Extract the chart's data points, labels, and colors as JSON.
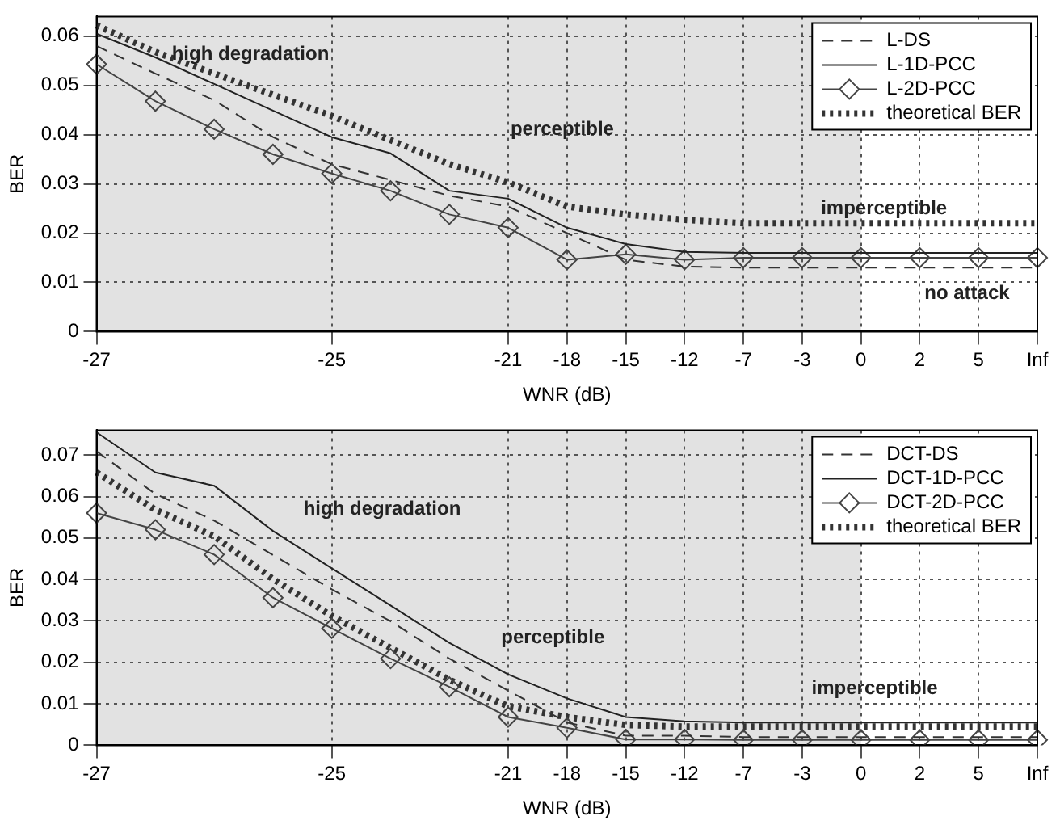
{
  "chart_data": [
    {
      "type": "line",
      "xlabel": "WNR (dB)",
      "ylabel": "BER",
      "categories": [
        "-27",
        null,
        null,
        null,
        "-25",
        null,
        null,
        "-21",
        "-18",
        "-15",
        "-12",
        "-7",
        "-3",
        "0",
        "2",
        "5",
        "Inf"
      ],
      "ylim": [
        0,
        0.064
      ],
      "yticks": [
        0,
        0.01,
        0.02,
        0.03,
        0.04,
        0.05,
        0.06
      ],
      "grid": true,
      "legend": "top right",
      "bands": [
        {
          "axis": "x",
          "from": "-27",
          "to": "0",
          "color": "#e2e2e2"
        }
      ],
      "annotations": [
        "high degradation",
        "perceptible",
        "imperceptible",
        "no attack"
      ],
      "series": [
        {
          "name": "L-DS",
          "color": "#333333",
          "line_style": "dashed",
          "marker": "none",
          "values": [
            0.058,
            0.0524,
            0.047,
            0.0395,
            0.034,
            0.0308,
            0.0276,
            0.0254,
            0.02,
            0.0146,
            0.0132,
            0.013,
            0.013,
            0.013,
            0.013,
            0.013,
            0.013
          ]
        },
        {
          "name": "L-1D-PCC",
          "color": "#222222",
          "line_style": "solid",
          "marker": "none",
          "values": [
            0.0605,
            0.0557,
            0.0503,
            0.0449,
            0.0395,
            0.0362,
            0.0286,
            0.027,
            0.0211,
            0.0178,
            0.0162,
            0.016,
            0.016,
            0.016,
            0.016,
            0.016,
            0.016
          ]
        },
        {
          "name": "L-2D-PCC",
          "color": "#444444",
          "line_style": "solid",
          "marker": "diamond",
          "values": [
            0.0543,
            0.0468,
            0.0411,
            0.036,
            0.0321,
            0.0286,
            0.0238,
            0.0211,
            0.0146,
            0.0157,
            0.0146,
            0.015,
            0.015,
            0.015,
            0.015,
            0.015,
            0.015
          ]
        },
        {
          "name": "theoretical BER",
          "color": "#333333",
          "line_style": "dotted",
          "marker": "none",
          "values": [
            0.0622,
            0.0568,
            0.0524,
            0.0481,
            0.0438,
            0.0389,
            0.034,
            0.0303,
            0.0254,
            0.0238,
            0.0227,
            0.022,
            0.022,
            0.022,
            0.022,
            0.022,
            0.022
          ]
        }
      ]
    },
    {
      "type": "line",
      "xlabel": "WNR (dB)",
      "ylabel": "BER",
      "categories": [
        "-27",
        null,
        null,
        null,
        "-25",
        null,
        null,
        "-21",
        "-18",
        "-15",
        "-12",
        "-7",
        "-3",
        "0",
        "2",
        "5",
        "Inf"
      ],
      "ylim": [
        0,
        0.076
      ],
      "yticks": [
        0,
        0.01,
        0.02,
        0.03,
        0.04,
        0.05,
        0.06,
        0.07
      ],
      "grid": true,
      "legend": "top right",
      "bands": [
        {
          "axis": "x",
          "from": "-27",
          "to": "0",
          "color": "#e2e2e2"
        }
      ],
      "annotations": [
        "high degradation",
        "perceptible",
        "imperceptible"
      ],
      "series": [
        {
          "name": "DCT-DS",
          "color": "#333333",
          "line_style": "dashed",
          "marker": "none",
          "values": [
            0.0709,
            0.0606,
            0.0542,
            0.0459,
            0.0376,
            0.0299,
            0.0209,
            0.0132,
            0.0055,
            0.0023,
            0.0023,
            0.002,
            0.002,
            0.002,
            0.002,
            0.002,
            0.002
          ]
        },
        {
          "name": "DCT-1D-PCC",
          "color": "#222222",
          "line_style": "solid",
          "marker": "none",
          "values": [
            0.0755,
            0.0658,
            0.0626,
            0.0517,
            0.0427,
            0.0337,
            0.0247,
            0.0171,
            0.0113,
            0.0068,
            0.0058,
            0.0055,
            0.0055,
            0.0055,
            0.0055,
            0.0055,
            0.0055
          ]
        },
        {
          "name": "DCT-2D-PCC",
          "color": "#444444",
          "line_style": "solid",
          "marker": "diamond",
          "values": [
            0.056,
            0.052,
            0.046,
            0.0356,
            0.0282,
            0.0209,
            0.0141,
            0.0068,
            0.0042,
            0.0014,
            0.0014,
            0.0013,
            0.0013,
            0.0013,
            0.0013,
            0.0013,
            0.0013
          ]
        },
        {
          "name": "theoretical BER",
          "color": "#333333",
          "line_style": "dotted",
          "marker": "none",
          "values": [
            0.0658,
            0.0568,
            0.0504,
            0.0401,
            0.0312,
            0.0235,
            0.0158,
            0.0094,
            0.0068,
            0.0049,
            0.0045,
            0.0045,
            0.0045,
            0.0045,
            0.0045,
            0.0045,
            0.0045
          ]
        }
      ]
    }
  ]
}
